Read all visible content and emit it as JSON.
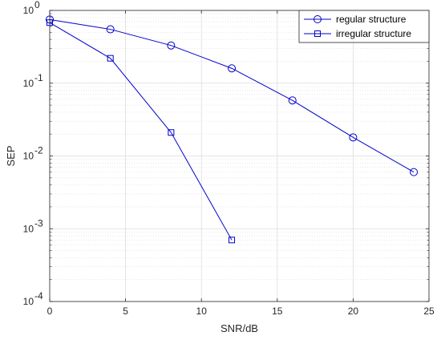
{
  "chart_data": {
    "type": "line",
    "xlabel": "SNR/dB",
    "ylabel": "SEP",
    "xlim": [
      0,
      25
    ],
    "ylim": [
      0.0001,
      1
    ],
    "y_scale": "log",
    "x_ticks": [
      0,
      5,
      10,
      15,
      20,
      25
    ],
    "x_tick_labels": [
      "0",
      "5",
      "10",
      "15",
      "20",
      "25"
    ],
    "y_ticks": [
      0.0001,
      0.001,
      0.01,
      0.1,
      1
    ],
    "y_tick_exponents": [
      "-4",
      "-3",
      "-2",
      "-1",
      "0"
    ],
    "y_tick_base": "10",
    "grid": true,
    "minor_grid": true,
    "legend_position": "top-right",
    "line_color": "#0000cc",
    "series": [
      {
        "name": "regular structure",
        "marker": "circle",
        "x": [
          0,
          4,
          8,
          12,
          16,
          20,
          24
        ],
        "y": [
          0.75,
          0.55,
          0.33,
          0.16,
          0.058,
          0.018,
          0.006
        ]
      },
      {
        "name": "irregular structure",
        "marker": "square",
        "x": [
          0,
          4,
          8,
          12
        ],
        "y": [
          0.68,
          0.22,
          0.021,
          0.0007
        ]
      }
    ]
  }
}
